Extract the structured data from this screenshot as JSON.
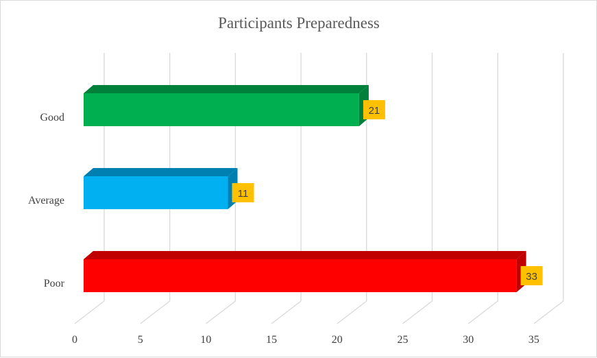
{
  "chart_data": {
    "type": "bar",
    "orientation": "horizontal",
    "style": "3d",
    "title": "Participants Preparedness",
    "xlabel": "",
    "ylabel": "",
    "categories": [
      "Good",
      "Average",
      "Poor"
    ],
    "values": [
      21,
      11,
      33
    ],
    "data_labels": [
      "21",
      "11",
      "33"
    ],
    "colors": [
      "#00b050",
      "#00b0f0",
      "#ff0000"
    ],
    "side_colors": [
      "#00803a",
      "#0080b0",
      "#c00000"
    ],
    "label_background": "#ffc000",
    "xlim": [
      0,
      35
    ],
    "x_ticks": [
      "0",
      "5",
      "10",
      "15",
      "20",
      "25",
      "30",
      "35"
    ],
    "grid": true,
    "legend": "none"
  }
}
